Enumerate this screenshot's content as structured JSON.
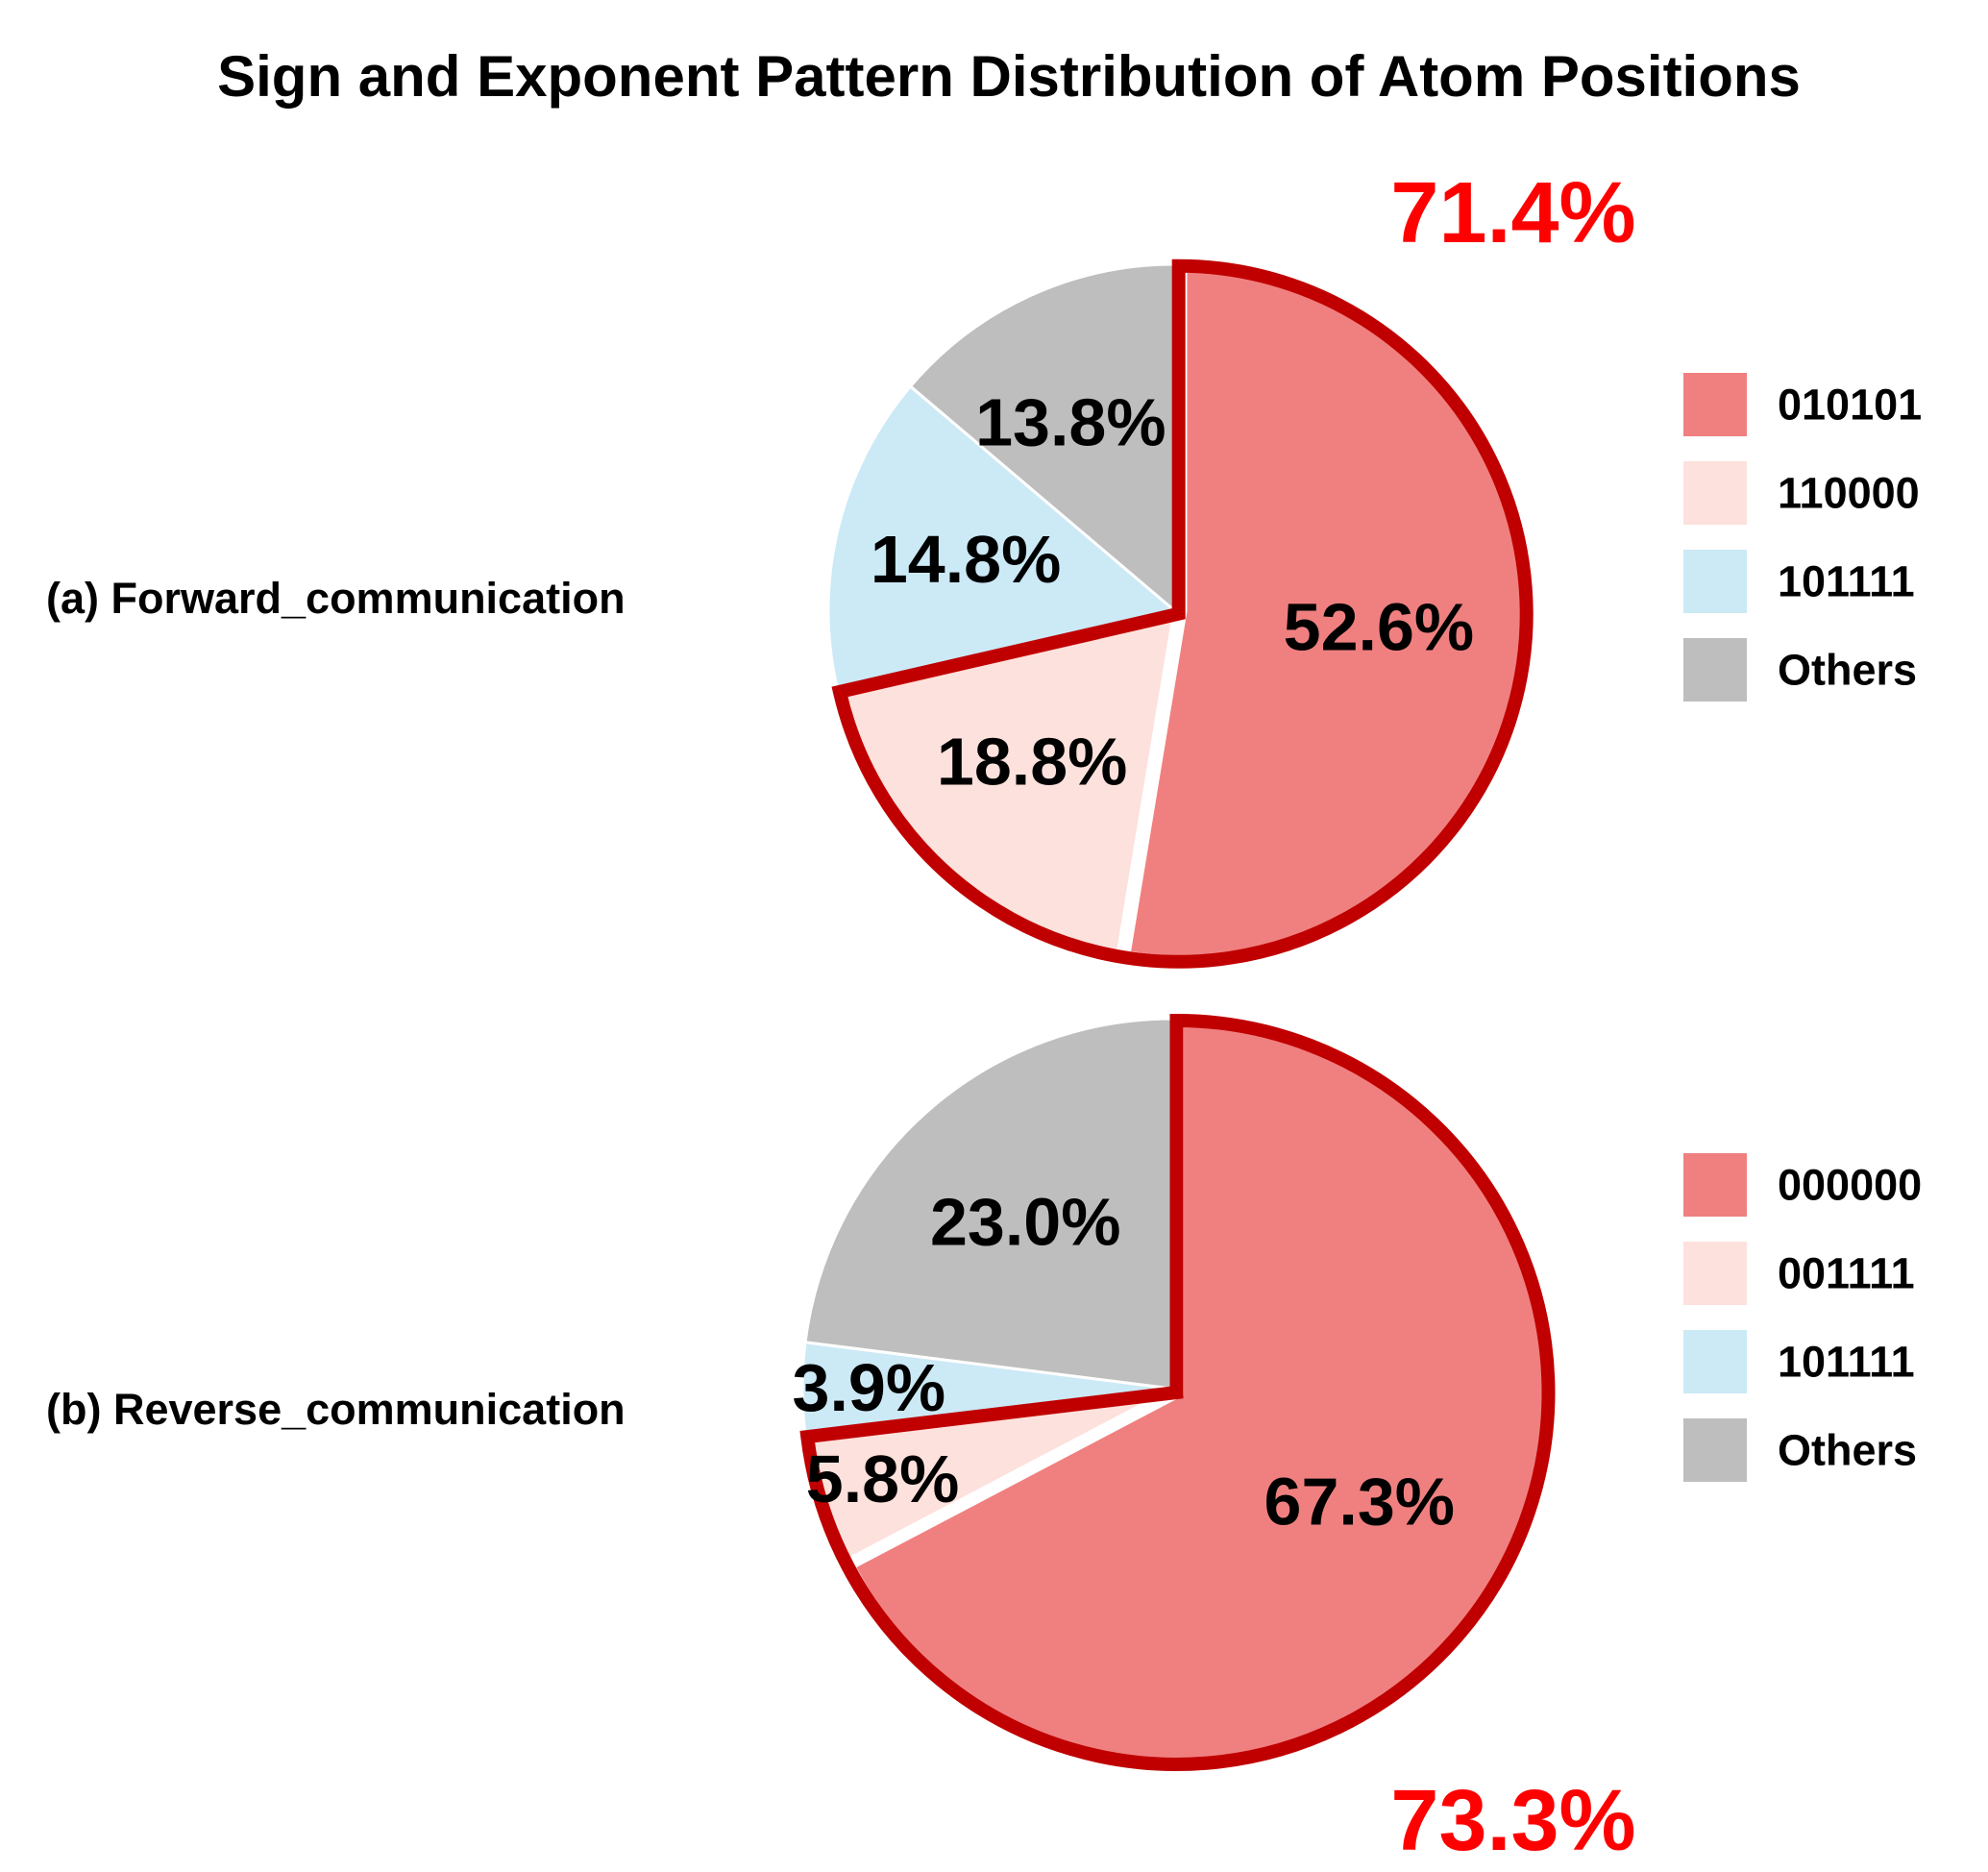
{
  "title": "Sign and Exponent Pattern Distribution of Atom Positions",
  "colors": {
    "outline": "#c00000",
    "highlight_text": "#ff0000",
    "slice_separator": "#ffffff"
  },
  "chart_data": [
    {
      "type": "pie",
      "label": "(a) Forward_communication",
      "highlight_label": "71.4%",
      "highlight_value": 71.4,
      "highlighted_series": [
        "010101",
        "110000"
      ],
      "slices": [
        {
          "name": "010101",
          "value": 52.6,
          "label": "52.6%",
          "color": "#f08080"
        },
        {
          "name": "110000",
          "value": 18.8,
          "label": "18.8%",
          "color": "#fde1dc"
        },
        {
          "name": "101111",
          "value": 14.8,
          "label": "14.8%",
          "color": "#cce9f6"
        },
        {
          "name": "Others",
          "value": 13.8,
          "label": "13.8%",
          "color": "#bebebe"
        }
      ],
      "legend": [
        "010101",
        "110000",
        "101111",
        "Others"
      ],
      "legend_position": "right"
    },
    {
      "type": "pie",
      "label": "(b) Reverse_communication",
      "highlight_label": "73.3%",
      "highlight_value": 73.3,
      "highlighted_series": [
        "000000",
        "001111"
      ],
      "slices": [
        {
          "name": "000000",
          "value": 67.3,
          "label": "67.3%",
          "color": "#f08080"
        },
        {
          "name": "001111",
          "value": 5.8,
          "label": "5.8%",
          "color": "#fde1dc"
        },
        {
          "name": "101111",
          "value": 3.9,
          "label": "3.9%",
          "color": "#cce9f6"
        },
        {
          "name": "Others",
          "value": 23.0,
          "label": "23.0%",
          "color": "#bebebe"
        }
      ],
      "legend": [
        "000000",
        "001111",
        "101111",
        "Others"
      ],
      "legend_position": "right"
    }
  ]
}
